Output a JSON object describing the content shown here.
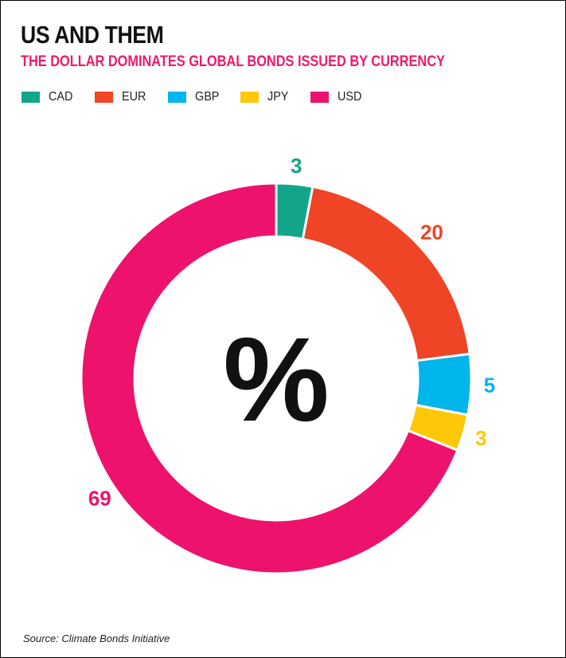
{
  "title": "US AND THEM",
  "subtitle": "THE DOLLAR DOMINATES GLOBAL BONDS ISSUED BY CURRENCY",
  "center_label": "%",
  "source": "Source: Climate Bonds Initiative",
  "colors": {
    "title": "#111111",
    "subtitle": "#ee1a6c",
    "CAD": "#12a58a",
    "EUR": "#ef4426",
    "GBP": "#00b4ec",
    "JPY": "#fdc807",
    "USD": "#ed126c"
  },
  "chart_data": {
    "type": "pie",
    "variant": "donut",
    "title": "US AND THEM",
    "subtitle": "THE DOLLAR DOMINATES GLOBAL BONDS ISSUED BY CURRENCY",
    "unit": "%",
    "legend_placement": "top-left",
    "categories": [
      "CAD",
      "EUR",
      "GBP",
      "JPY",
      "USD"
    ],
    "values": [
      3,
      20,
      5,
      3,
      69
    ],
    "labels": [
      "3",
      "20",
      "5",
      "3",
      "69"
    ]
  }
}
